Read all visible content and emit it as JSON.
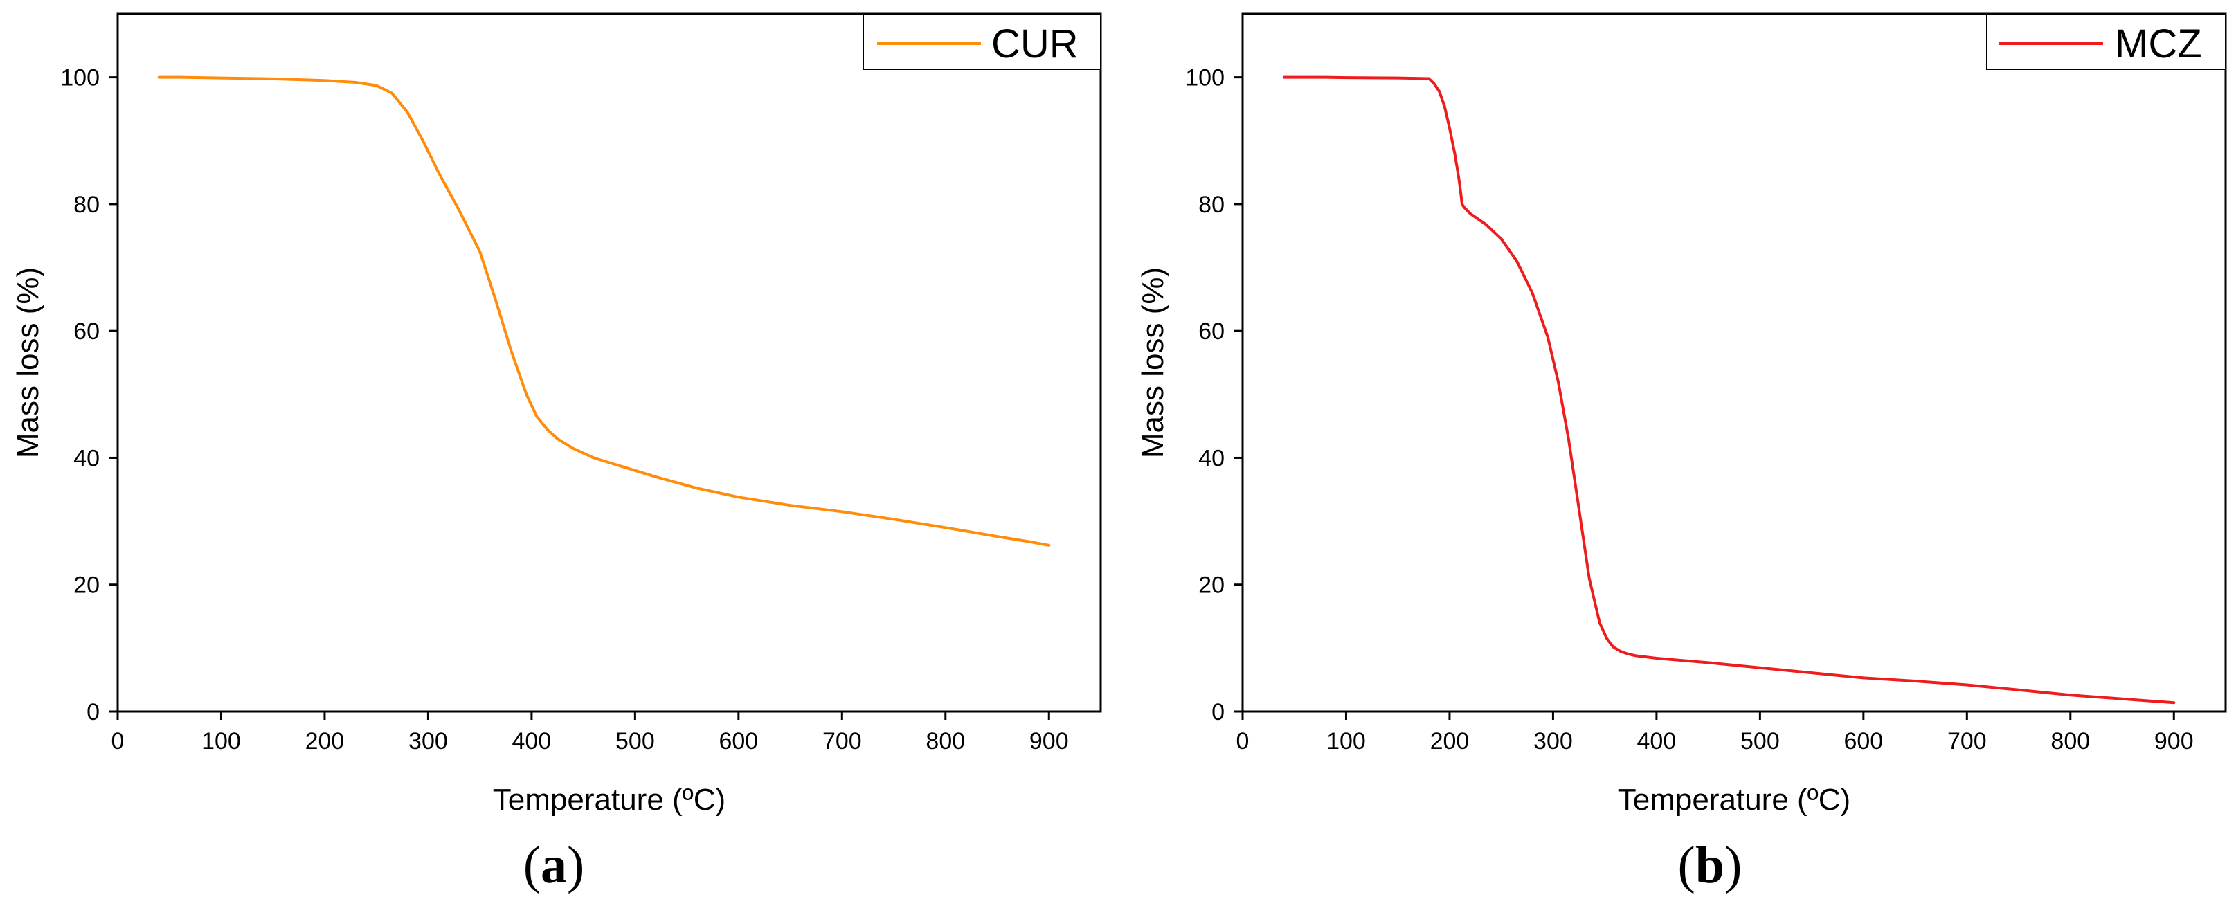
{
  "chart_data": [
    {
      "type": "line",
      "panel_label": "a",
      "panel_open": "(",
      "panel_close": ")",
      "xlabel": "Temperature (ºC)",
      "ylabel": "Mass loss (%)",
      "xlim": [
        0,
        950
      ],
      "ylim": [
        0,
        110
      ],
      "xticks": [
        0,
        100,
        200,
        300,
        400,
        500,
        600,
        700,
        800,
        900
      ],
      "yticks": [
        0,
        20,
        40,
        60,
        80,
        100
      ],
      "legend_position": "top-right",
      "series": [
        {
          "name": "CUR",
          "color": "#FF8C0A",
          "x": [
            40,
            60,
            80,
            100,
            150,
            200,
            230,
            250,
            265,
            280,
            295,
            310,
            330,
            350,
            365,
            380,
            395,
            405,
            415,
            425,
            440,
            460,
            490,
            520,
            560,
            600,
            650,
            700,
            750,
            800,
            850,
            880,
            900
          ],
          "y": [
            100,
            100,
            99.95,
            99.9,
            99.75,
            99.5,
            99.2,
            98.7,
            97.5,
            94.5,
            90,
            85,
            79,
            72.5,
            65,
            57,
            50,
            46.5,
            44.5,
            43,
            41.5,
            40,
            38.5,
            37,
            35.2,
            33.8,
            32.5,
            31.5,
            30.3,
            29,
            27.6,
            26.8,
            26.2
          ]
        }
      ]
    },
    {
      "type": "line",
      "panel_label": "b",
      "panel_open": "(",
      "panel_close": ")",
      "xlabel": "Temperature (ºC)",
      "ylabel": "Mass loss (%)",
      "xlim": [
        0,
        950
      ],
      "ylim": [
        0,
        110
      ],
      "xticks": [
        0,
        100,
        200,
        300,
        400,
        500,
        600,
        700,
        800,
        900
      ],
      "yticks": [
        0,
        20,
        40,
        60,
        80,
        100
      ],
      "legend_position": "top-right",
      "series": [
        {
          "name": "MCZ",
          "color": "#EE1C1C",
          "x": [
            40,
            60,
            80,
            100,
            150,
            180,
            185,
            190,
            195,
            200,
            205,
            209,
            211,
            212,
            214,
            220,
            235,
            250,
            265,
            280,
            295,
            305,
            315,
            325,
            335,
            345,
            352,
            358,
            365,
            372,
            380,
            390,
            400,
            450,
            500,
            550,
            600,
            650,
            700,
            750,
            800,
            850,
            900
          ],
          "y": [
            100,
            100,
            100,
            99.95,
            99.9,
            99.8,
            99,
            97.8,
            95.5,
            92,
            88,
            84,
            81.5,
            80,
            79.5,
            78.5,
            76.8,
            74.5,
            71,
            66,
            59,
            52,
            43,
            32,
            21,
            14,
            11.5,
            10.2,
            9.5,
            9.1,
            8.8,
            8.6,
            8.4,
            7.7,
            6.9,
            6.1,
            5.3,
            4.8,
            4.2,
            3.4,
            2.6,
            2.0,
            1.4
          ]
        }
      ]
    }
  ]
}
